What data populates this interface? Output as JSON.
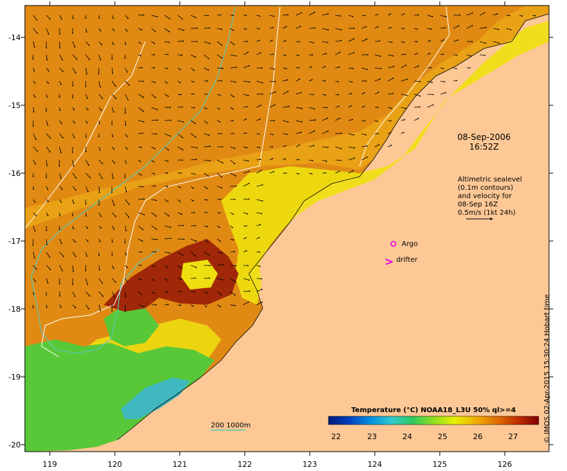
{
  "annotations": {
    "datetime_line1": "08-Sep-2006",
    "datetime_line2": "16:52Z",
    "altimetry_note": [
      "Altimetric sealevel",
      "(0.1m contours)",
      "and velocity for",
      "08-Sep 16Z",
      "0.5m/s (1kt 24h)"
    ],
    "argo_label": "Argo",
    "drifter_label": "drifter",
    "drifter_symbol": ">",
    "isobath_legend": "200  1000m"
  },
  "axes": {
    "lon_ticks": [
      "119",
      "120",
      "121",
      "122",
      "123",
      "124",
      "125",
      "126"
    ],
    "lat_ticks": [
      "-14",
      "-15",
      "-16",
      "-17",
      "-18",
      "-19",
      "-20"
    ]
  },
  "colorbar": {
    "title": "Temperature (°C) NOAA18_L3U 50% ql>=4",
    "ticks": [
      "22",
      "23",
      "24",
      "25",
      "26",
      "27"
    ],
    "colors": [
      "#001a7a",
      "#0040c0",
      "#0090e0",
      "#30c8d0",
      "#30c860",
      "#90e020",
      "#e8f000",
      "#f0b000",
      "#e07000",
      "#c03000",
      "#800000"
    ]
  },
  "credit": "© IMOS 02-Apr-2015 15:30:24 Hobart time",
  "map_colors": {
    "land": "#fdc896",
    "warm_sea": "#e08a14",
    "warmest_sea": "#a02808",
    "mid_sea": "#f0b418",
    "yellow_sea": "#eee010",
    "green_sea": "#58c838",
    "cyan_sea": "#40b8c0",
    "isobath_200": "#5ac8b4",
    "isobath_1000": "#ffffff"
  }
}
